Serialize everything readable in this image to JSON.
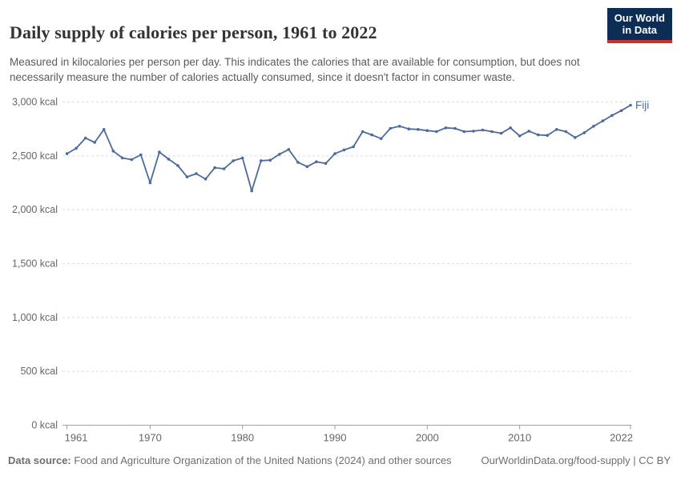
{
  "header": {
    "title": "Daily supply of calories per person, 1961 to 2022",
    "subtitle": "Measured in kilocalories per person per day. This indicates the calories that are available for consumption, but does not necessarily measure the number of calories actually consumed, since it doesn't factor in consumer waste."
  },
  "logo": {
    "line1": "Our World",
    "line2": "in Data",
    "bg_color": "#0d2e54",
    "stripe_color": "#c9302f"
  },
  "chart_data": {
    "type": "line",
    "title": "Daily supply of calories per person, 1961 to 2022",
    "ylabel": "kcal",
    "xlabel": "",
    "xlim": [
      1961,
      2022
    ],
    "ylim": [
      0,
      3000
    ],
    "grid": "horizontal-dashed",
    "x_ticks": [
      1961,
      1970,
      1980,
      1990,
      2000,
      2010,
      2022
    ],
    "y_ticks": [
      0,
      500,
      1000,
      1500,
      2000,
      2500,
      3000
    ],
    "y_tick_suffix": " kcal",
    "legend_position": "end-of-line",
    "series": [
      {
        "name": "Fiji",
        "color": "#4C6A9C",
        "x": [
          1961,
          1962,
          1963,
          1964,
          1965,
          1966,
          1967,
          1968,
          1969,
          1970,
          1971,
          1972,
          1973,
          1974,
          1975,
          1976,
          1977,
          1978,
          1979,
          1980,
          1981,
          1982,
          1983,
          1984,
          1985,
          1986,
          1987,
          1988,
          1989,
          1990,
          1991,
          1992,
          1993,
          1994,
          1995,
          1996,
          1997,
          1998,
          1999,
          2000,
          2001,
          2002,
          2003,
          2004,
          2005,
          2006,
          2007,
          2008,
          2009,
          2010,
          2011,
          2012,
          2013,
          2014,
          2015,
          2016,
          2017,
          2018,
          2019,
          2020,
          2021,
          2022
        ],
        "values": [
          2520,
          2570,
          2665,
          2625,
          2745,
          2545,
          2480,
          2465,
          2510,
          2250,
          2535,
          2470,
          2410,
          2305,
          2335,
          2285,
          2390,
          2380,
          2455,
          2480,
          2175,
          2455,
          2460,
          2515,
          2560,
          2440,
          2400,
          2445,
          2430,
          2520,
          2555,
          2585,
          2725,
          2695,
          2660,
          2755,
          2775,
          2750,
          2745,
          2735,
          2725,
          2760,
          2755,
          2725,
          2730,
          2740,
          2725,
          2710,
          2760,
          2685,
          2730,
          2695,
          2690,
          2745,
          2725,
          2670,
          2715,
          2775,
          2825,
          2875,
          2920,
          2970
        ]
      }
    ]
  },
  "footer": {
    "datasource_label": "Data source:",
    "datasource_text": "Food and Agriculture Organization of the United Nations (2024) and other sources",
    "rights_text": "OurWorldinData.org/food-supply | CC BY"
  },
  "colors": {
    "line": "#4C6A9C",
    "grid": "#dcdcdc",
    "axis": "#a3a3a3",
    "tick": "#999999",
    "tick_label": "#666666"
  }
}
